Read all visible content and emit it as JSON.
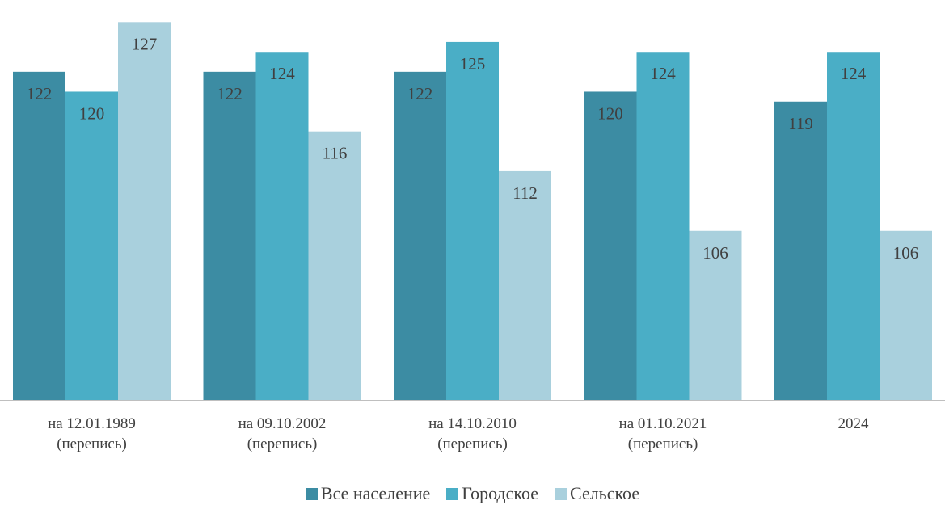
{
  "chart_data": {
    "type": "bar",
    "title": "",
    "xlabel": "",
    "ylabel": "",
    "categories": [
      [
        "на 12.01.1989",
        "(перепись)"
      ],
      [
        "на 09.10.2002",
        "(перепись)"
      ],
      [
        "на 14.10.2010",
        "(перепись)"
      ],
      [
        "на 01.10.2021",
        "(перепись)"
      ],
      [
        "2024"
      ]
    ],
    "series": [
      {
        "name": "Все население",
        "color": "#3c8ca3",
        "values": [
          122,
          122,
          122,
          120,
          119
        ]
      },
      {
        "name": "Городское",
        "color": "#4aaec6",
        "values": [
          120,
          124,
          125,
          124,
          124
        ]
      },
      {
        "name": "Сельское",
        "color": "#a9d0dd",
        "values": [
          127,
          116,
          112,
          106,
          106
        ]
      }
    ],
    "ylim": [
      89,
      128
    ],
    "grid": false,
    "legend": "bottom"
  }
}
